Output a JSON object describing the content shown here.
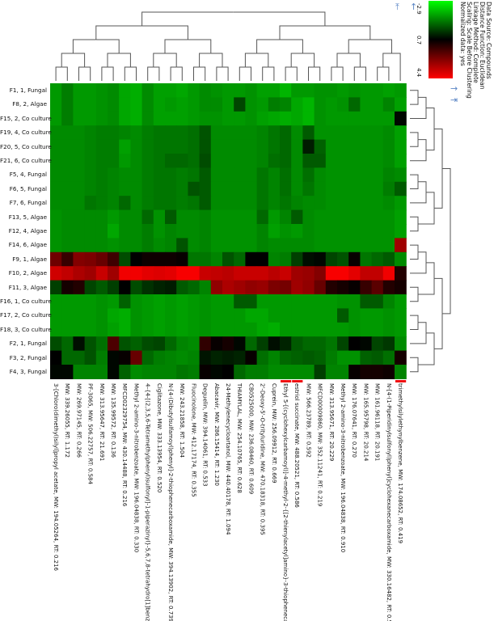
{
  "legend": {
    "lines": [
      "Data Source: Compounds",
      "Distance Function: Euclidean",
      "Linkage Method: Complete",
      "Scaling: Scale Before Clustering",
      "Normalized data: yes"
    ],
    "ticks": [
      "-2.9",
      "0.7",
      "4.4"
    ],
    "low_color": "#00ff00",
    "mid_color": "#000000",
    "high_color": "#ff0000"
  },
  "chart_data": {
    "type": "heatmap",
    "color_range": [
      -2.9,
      4.4
    ],
    "highlight_color": "#ee1111",
    "highlighted_columns": [
      20,
      21,
      30
    ],
    "rows": [
      "F1, 1, Fungal",
      "F8, 2, Algae",
      "F15, 2, Co culture",
      "F19, 4, Co culture",
      "F20, 5, Co culture",
      "F21, 6, Co culture",
      "F5, 4, Fungal",
      "F6, 5, Fungal",
      "F7, 6, Fungal",
      "F13, 5, Algae",
      "F12, 4, Algae",
      "F14, 6, Algae",
      "F9, 1, Algae",
      "F10, 2, Algae",
      "F11, 3, Algae",
      "F16, 1, Co culture",
      "F17, 2, Co culture",
      "F18, 3, Co culture",
      "F2, 1, Fungal",
      "F3, 2, Fungal",
      "F4, 3, Fungal"
    ],
    "columns": [
      "3-[Chloro(dimethyl)silyl]propyl acetate, MW: 194.05264, RT: 0.216",
      "MW: 339.26055, RT: 1.172",
      "MW: 269.97145, RT: 0.266",
      "PF-3065, MW: 506.22757, RT: 0.584",
      "MW: 313.95647, RT: 21.691",
      "MW: 135.99572, RT: 0.136",
      "MFCD02329754, MW: 430.14488, RT: 0.216",
      "Methyl 2-amino-3-nitrobenzoate, MW: 196.04838, RT: 0.330",
      "4-{4-[(2,3,5,6-Tetramethylphenyl)sulfonyl]-1-piperazinyl}-5,6,7,8-tetrahydro[1]benzot...",
      "Ciglitazone, MW: 333.13954, RT: 0.520",
      "N-[4-(Dibutylsulfamoyl)phenyl]-2-thiophenecarboxamide, MW: 394.13902, RT: 0.739",
      "MW: 243.21858, RT: 1.504",
      "Fluocinolone, MW: 412.17174, RT: 0.355",
      "Deguelin, MW: 394.14061, RT: 0.533",
      "Abacavir, MW: 286.15414, RT: 1.230",
      "24-Methylenecycloartanol, MW: 440.40178, RT: 1.094",
      "THIAMYLAL, MW: 254.10765, RT: 0.628",
      "CB0525000, MW: 236.08460, RT: 0.609",
      "2'-Deoxy-5'-O-trityluridine, MW: 470.18318, RT: 0.395",
      "Cuprein, MW: 256.09912, RT: 0.669",
      "Ethyl 5-[(cyclohexylcarbamoyl)]-4-methyl-2-{[2-thienylacetyl]amino}-3-thiophenecarb...",
      "estriol succinate, MW: 488.20521, RT: 0.586",
      "MW: 566.23789, RT: 0.592",
      "MFCD00009860, MW: 352.11241, RT: 0.219",
      "MW: 313.95671, RT: 20.229",
      "Methyl 2-amino-3-nitrobenzoate, MW: 196.04838, RT: 0.910",
      "MW: 176.07641, RT: 0.270",
      "MW: 165.95798, RT: 20.214",
      "MW: 161.96118, RT: 20.191",
      "N-[4-(1-Piperidinylsulfonyl)phenyl]cyclohexanecarboxamide, MW: 330.16482, RT: 0.5...",
      "trimethylsilylethynylbenzene, MW: 174.08652, RT: 0.419"
    ],
    "values": [
      [
        -1.5,
        -1.1,
        -1.5,
        -1.5,
        -1.4,
        -1.3,
        -1.7,
        -1.8,
        -1.3,
        -1.6,
        -1.6,
        -1.7,
        -1.5,
        -1.3,
        -1.4,
        -1.5,
        -1.5,
        -1.4,
        -1.6,
        -1.6,
        -1.9,
        -1.5,
        -1.5,
        -1.4,
        -1.4,
        -1.5,
        -1.4,
        -1.5,
        -1.5,
        -1.6,
        -1.5
      ],
      [
        -1.5,
        -1.1,
        -1.5,
        -1.5,
        -1.4,
        -1.3,
        -1.7,
        -1.8,
        -1.3,
        -1.6,
        -1.5,
        -1.6,
        -1.5,
        -1.3,
        -1.3,
        -1.5,
        -0.3,
        -1.4,
        -1.5,
        -1.1,
        -1.2,
        -1.7,
        -1.9,
        -1.4,
        -1.5,
        -1.4,
        -0.8,
        -1.5,
        -1.5,
        -1.2,
        -1.6
      ],
      [
        -1.5,
        -1.1,
        -1.5,
        -1.5,
        -1.4,
        -1.3,
        -1.7,
        -1.8,
        -1.3,
        -1.6,
        -1.6,
        -1.6,
        -1.5,
        -1.4,
        -1.4,
        -1.5,
        -1.5,
        -1.4,
        -1.6,
        -1.7,
        -1.8,
        -1.7,
        -1.9,
        -1.4,
        -1.5,
        -1.5,
        -1.5,
        -1.5,
        -1.5,
        -1.5,
        0.6
      ],
      [
        -1.3,
        -1.3,
        -1.3,
        -1.2,
        -1.1,
        -1.1,
        -1.2,
        -1.3,
        -1.1,
        -1.0,
        -1.0,
        -1.0,
        -0.9,
        -0.5,
        -1.3,
        -1.3,
        -1.3,
        -1.3,
        -1.2,
        -1.0,
        -0.8,
        -1.3,
        -0.6,
        -1.4,
        -1.4,
        -1.4,
        -1.4,
        -1.4,
        -1.4,
        -1.3,
        -1.6
      ],
      [
        -1.3,
        -1.3,
        -1.3,
        -1.2,
        -1.1,
        -1.1,
        -1.6,
        -1.3,
        -1.1,
        -1.0,
        -1.0,
        -1.0,
        -0.9,
        -0.5,
        -1.3,
        -1.3,
        -1.3,
        -1.3,
        -1.2,
        -1.0,
        -0.8,
        -1.3,
        0.3,
        -0.7,
        -1.4,
        -1.4,
        -1.4,
        -1.4,
        -1.4,
        -1.3,
        -1.6
      ],
      [
        -1.3,
        -1.3,
        -1.3,
        -1.2,
        -1.1,
        -1.1,
        -1.5,
        -1.3,
        -1.1,
        -1.0,
        -0.8,
        -0.8,
        -0.9,
        -0.4,
        -1.3,
        -1.3,
        -1.3,
        -1.3,
        -1.2,
        -0.9,
        -0.8,
        -1.3,
        -0.6,
        -0.6,
        -1.4,
        -1.4,
        -1.4,
        -1.4,
        -1.4,
        -1.3,
        -1.6
      ],
      [
        -1.3,
        -1.3,
        -1.3,
        -1.2,
        -1.1,
        -1.2,
        -1.3,
        -1.3,
        -1.1,
        -1.0,
        -1.0,
        -1.1,
        -1.0,
        -0.6,
        -1.3,
        -1.3,
        -1.3,
        -1.3,
        -1.0,
        -1.2,
        -0.9,
        -1.3,
        -0.9,
        -1.3,
        -1.4,
        -1.4,
        -1.4,
        -1.4,
        -1.4,
        -1.2,
        -1.3
      ],
      [
        -1.3,
        -1.3,
        -1.3,
        -1.2,
        -1.1,
        -1.2,
        -1.3,
        -1.3,
        -1.1,
        -1.0,
        -1.0,
        -1.1,
        -0.5,
        -0.6,
        -1.3,
        -1.3,
        -1.3,
        -1.3,
        -1.0,
        -1.2,
        -0.9,
        -1.3,
        -1.0,
        -1.3,
        -1.4,
        -1.4,
        -1.4,
        -1.4,
        -1.4,
        -1.1,
        -0.6
      ],
      [
        -1.3,
        -1.3,
        -1.3,
        -1.0,
        -1.1,
        -1.2,
        -0.8,
        -1.3,
        -1.1,
        -1.0,
        -1.0,
        -1.1,
        -1.0,
        -0.6,
        -1.3,
        -1.3,
        -1.3,
        -1.3,
        -1.0,
        -1.2,
        -1.0,
        -1.2,
        -1.3,
        -1.3,
        -1.4,
        -1.4,
        -1.4,
        -1.4,
        -1.4,
        -1.3,
        -1.5
      ],
      [
        -1.4,
        -1.3,
        -1.3,
        -1.3,
        -1.3,
        -1.5,
        -1.3,
        -1.3,
        -0.8,
        -1.4,
        -0.6,
        -1.3,
        -1.3,
        -1.2,
        -1.4,
        -1.4,
        -1.4,
        -1.4,
        -0.8,
        -1.5,
        -1.2,
        -0.6,
        -1.3,
        -1.4,
        -1.4,
        -1.4,
        -1.4,
        -1.4,
        -1.4,
        -1.4,
        -1.6
      ],
      [
        -1.4,
        -1.3,
        -1.3,
        -1.3,
        -1.3,
        -1.7,
        -1.3,
        -1.3,
        -1.1,
        -1.4,
        -1.2,
        -1.3,
        -1.3,
        -1.2,
        -1.4,
        -1.4,
        -1.4,
        -1.4,
        -1.2,
        -1.6,
        -1.4,
        -1.5,
        -1.3,
        -1.4,
        -1.4,
        -1.4,
        -1.4,
        -1.4,
        -1.4,
        -1.4,
        -1.6
      ],
      [
        -1.4,
        -1.3,
        -1.3,
        -1.3,
        -1.3,
        -1.4,
        -1.3,
        -1.3,
        -1.1,
        -1.3,
        -1.2,
        -0.5,
        -1.3,
        -1.2,
        -1.4,
        -1.4,
        -1.4,
        -1.4,
        -1.2,
        -1.3,
        -1.3,
        -1.3,
        -1.3,
        -1.4,
        -1.4,
        -1.4,
        -1.4,
        -1.4,
        -1.4,
        -1.4,
        3.0
      ],
      [
        2.3,
        1.5,
        2.6,
        2.5,
        2.2,
        1.6,
        -0.4,
        0.7,
        0.9,
        0.9,
        0.9,
        0.8,
        -1.0,
        -1.0,
        -1.2,
        -0.5,
        -0.8,
        0.7,
        0.7,
        -1.2,
        -1.1,
        -0.2,
        0.5,
        0.6,
        -0.3,
        -0.5,
        0.8,
        -1.0,
        -0.8,
        -0.6,
        -1.3
      ],
      [
        3.7,
        3.5,
        3.2,
        3.0,
        3.6,
        3.0,
        4.2,
        4.2,
        4.0,
        3.9,
        4.0,
        4.3,
        4.3,
        3.6,
        3.5,
        3.4,
        3.6,
        3.6,
        3.6,
        3.4,
        3.6,
        3.0,
        2.9,
        2.6,
        4.3,
        4.3,
        4.0,
        3.5,
        3.5,
        4.2,
        1.2
      ],
      [
        -0.2,
        1.0,
        1.2,
        -0.3,
        -0.6,
        -0.2,
        0.7,
        -0.4,
        0.0,
        0.2,
        0.3,
        -0.6,
        -0.8,
        -1.2,
        2.8,
        3.2,
        3.0,
        2.8,
        2.9,
        2.5,
        2.4,
        3.0,
        2.8,
        2.2,
        1.2,
        1.0,
        0.8,
        1.5,
        2.0,
        1.2,
        1.0
      ],
      [
        -1.5,
        -1.5,
        -1.5,
        -1.5,
        -1.4,
        -1.5,
        -0.7,
        -1.4,
        -1.5,
        -1.6,
        -1.5,
        -1.6,
        -1.5,
        -1.4,
        -1.5,
        -1.5,
        -0.6,
        -0.6,
        -1.5,
        -1.5,
        -1.5,
        -1.5,
        -1.5,
        -1.5,
        -1.5,
        -1.4,
        -1.4,
        -0.6,
        -0.6,
        -1.2,
        -1.5
      ],
      [
        -1.5,
        -1.5,
        -1.5,
        -1.5,
        -1.4,
        -1.7,
        -1.8,
        -1.4,
        -1.5,
        -1.6,
        -1.5,
        -1.6,
        -1.5,
        -1.4,
        -1.5,
        -1.5,
        -1.5,
        -1.7,
        -1.7,
        -1.5,
        -1.5,
        -1.5,
        -1.5,
        -1.5,
        -1.5,
        -0.6,
        -1.4,
        -1.5,
        -1.5,
        -1.4,
        -1.5
      ],
      [
        -1.5,
        -1.5,
        -1.5,
        -1.5,
        -1.4,
        -1.6,
        -1.8,
        -1.4,
        -1.5,
        -1.6,
        -1.5,
        -1.6,
        -1.5,
        -1.4,
        -1.5,
        -1.5,
        -1.5,
        -1.5,
        -1.7,
        -1.8,
        -1.5,
        -1.5,
        -1.5,
        -1.5,
        -1.5,
        -1.5,
        -1.4,
        -1.5,
        -1.5,
        -1.4,
        -1.5
      ],
      [
        -0.4,
        -0.8,
        0.5,
        -0.5,
        -0.9,
        1.8,
        -0.5,
        -0.7,
        -0.4,
        -0.3,
        -0.8,
        -1.2,
        -1.3,
        1.4,
        0.8,
        1.0,
        0.6,
        -0.8,
        -0.2,
        0.5,
        0.2,
        -0.6,
        -0.8,
        -0.8,
        -1.0,
        -0.3,
        0.7,
        0.6,
        -0.3,
        -0.1,
        -1.3
      ],
      [
        0.7,
        -0.8,
        -0.8,
        -0.5,
        -1.1,
        0.6,
        0.8,
        2.2,
        -0.8,
        -1.1,
        -1.2,
        -1.3,
        -1.2,
        0.4,
        0.2,
        0.3,
        0.2,
        0.8,
        -0.9,
        -1.2,
        -0.8,
        -0.7,
        -0.6,
        -0.7,
        -1.1,
        -1.4,
        -1.4,
        -0.7,
        -0.6,
        -0.9,
        1.0
      ],
      [
        0.6,
        0.6,
        -1.2,
        -1.2,
        -1.2,
        0.6,
        -0.7,
        -1.3,
        -1.2,
        -1.2,
        -1.2,
        -1.0,
        -1.1,
        0.8,
        0.6,
        0.7,
        -0.8,
        -1.1,
        -1.1,
        -1.3,
        -1.3,
        -1.3,
        -1.3,
        -0.2,
        -1.2,
        -1.2,
        0.8,
        1.0,
        1.0,
        0.9,
        -1.2
      ]
    ]
  }
}
